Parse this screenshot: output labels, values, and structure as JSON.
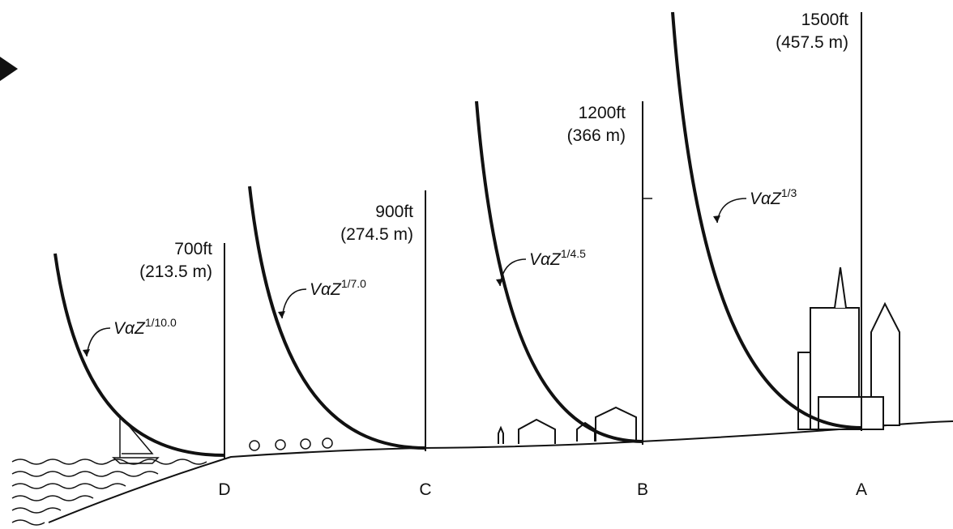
{
  "profiles": [
    {
      "height": "700ft",
      "metric": "(213.5 m)",
      "formula": "VαZ",
      "exponent": "1/10.0",
      "terrain": "D"
    },
    {
      "height": "900ft",
      "metric": "(274.5 m)",
      "formula": "VαZ",
      "exponent": "1/7.0",
      "terrain": "C"
    },
    {
      "height": "1200ft",
      "metric": "(366 m)",
      "formula": "VαZ",
      "exponent": "1/4.5",
      "terrain": "B"
    },
    {
      "height": "1500ft",
      "metric": "(457.5 m)",
      "formula": "VαZ",
      "exponent": "1/3",
      "terrain": "A"
    }
  ]
}
